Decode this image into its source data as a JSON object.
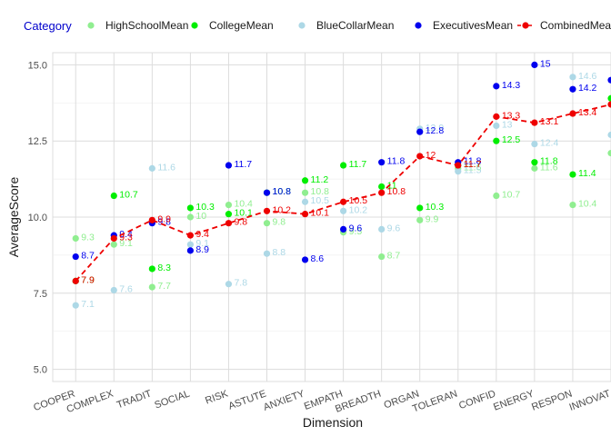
{
  "chart_data": {
    "type": "line",
    "title": "",
    "xlabel": "Dimension",
    "ylabel": "AverageScore",
    "ylim": [
      4.6,
      15.4
    ],
    "yticks": [
      5.0,
      7.5,
      10.0,
      12.5,
      15.0
    ],
    "ytick_labels": [
      "5.0",
      "7.5",
      "10.0",
      "12.5",
      "15.0"
    ],
    "grid": true,
    "legend": {
      "title": "Category",
      "placement": "top",
      "title_color": "#0000cc"
    },
    "categories": [
      "COOPER",
      "COMPLEX",
      "TRADIT",
      "SOCIAL",
      "RISK",
      "ASTUTE",
      "ANXIETY",
      "EMPATH",
      "BREADTH",
      "ORGAN",
      "TOLERAN",
      "CONFID",
      "ENERGY",
      "RESPON",
      "INNOVAT"
    ],
    "series": [
      {
        "name": "HighSchoolMean",
        "color": "#90ee90",
        "style": "points",
        "values": [
          9.3,
          9.1,
          7.7,
          10.0,
          10.4,
          9.8,
          10.8,
          9.5,
          8.7,
          9.9,
          11.6,
          10.7,
          11.6,
          10.4,
          12.1
        ],
        "labels": [
          "9.3",
          "9.1",
          "7.7",
          "10",
          "10.4",
          "9.8",
          "10.8",
          "9.5",
          "8.7",
          "9.9",
          "11.6",
          "10.7",
          "11.6",
          "10.4",
          "12.1"
        ]
      },
      {
        "name": "CollegeMean",
        "color": "#00ee00",
        "style": "points",
        "values": [
          7.9,
          10.7,
          8.3,
          10.3,
          10.1,
          10.8,
          11.2,
          11.7,
          11.0,
          10.3,
          11.7,
          12.5,
          11.8,
          11.4,
          13.9
        ],
        "labels": [
          "7.9",
          "10.7",
          "8.3",
          "10.3",
          "10.1",
          "10.8",
          "11.2",
          "11.7",
          "11",
          "10.3",
          "11.7",
          "12.5",
          "11.8",
          "11.4",
          "13.9"
        ]
      },
      {
        "name": "BlueCollarMean",
        "color": "#add8e6",
        "style": "points",
        "values": [
          7.1,
          7.6,
          11.6,
          9.1,
          7.8,
          8.8,
          10.5,
          10.2,
          9.6,
          12.9,
          11.5,
          13.0,
          12.4,
          14.6,
          12.7
        ],
        "labels": [
          "7.1",
          "7.6",
          "11.6",
          "9.1",
          "7.8",
          "8.8",
          "10.5",
          "10.2",
          "9.6",
          "12.9",
          "11.5",
          "13",
          "12.4",
          "14.6",
          "12.7"
        ]
      },
      {
        "name": "ExecutivesMean",
        "color": "#0000ee",
        "style": "points",
        "values": [
          8.7,
          9.4,
          9.8,
          8.9,
          11.7,
          10.8,
          8.6,
          9.6,
          11.8,
          12.8,
          11.8,
          14.3,
          15.0,
          14.2,
          14.5
        ],
        "labels": [
          "8.7",
          "9.4",
          "9.8",
          "8.9",
          "11.7",
          "10.8",
          "8.6",
          "9.6",
          "11.8",
          "12.8",
          "11.8",
          "14.3",
          "15",
          "14.2",
          "14.5"
        ]
      },
      {
        "name": "CombinedMean",
        "color": "#ee0000",
        "style": "dashed-line-points",
        "values": [
          7.9,
          9.3,
          9.9,
          9.4,
          9.8,
          10.2,
          10.1,
          10.5,
          10.8,
          12.0,
          11.7,
          13.3,
          13.1,
          13.4,
          13.7
        ],
        "labels": [
          "7.9",
          "9.3",
          "9.9",
          "9.4",
          "9.8",
          "10.2",
          "10.1",
          "10.5",
          "10.8",
          "12",
          "11.7",
          "13.3",
          "13.1",
          "13.4",
          "13.7"
        ]
      }
    ]
  }
}
